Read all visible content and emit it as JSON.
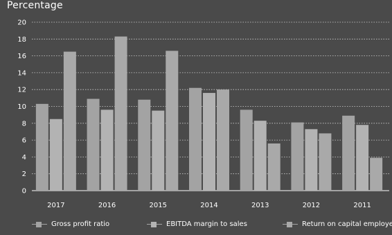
{
  "chart_data": {
    "type": "bar",
    "title": "",
    "ylabel": "Percentage",
    "xlabel": "",
    "ylim": [
      0,
      20
    ],
    "yticks": [
      0,
      2,
      4,
      6,
      8,
      10,
      12,
      14,
      16,
      18,
      20
    ],
    "grid": true,
    "legend_position": "bottom",
    "categories": [
      "2017",
      "2016",
      "2015",
      "2014",
      "2013",
      "2012",
      "2011"
    ],
    "series": [
      {
        "name": "Gross profit ratio",
        "values": [
          10.3,
          10.9,
          10.8,
          12.2,
          9.6,
          8.1,
          8.9
        ]
      },
      {
        "name": "EBITDA margin to sales",
        "values": [
          8.5,
          9.6,
          9.5,
          11.6,
          8.3,
          7.3,
          7.8
        ]
      },
      {
        "name": "Return on capital employed",
        "values": [
          16.5,
          18.3,
          16.6,
          12.0,
          5.6,
          6.8,
          3.9
        ]
      }
    ]
  },
  "colors": {
    "background": "#4a4a4a",
    "series": [
      "#a3a3a3",
      "#b3b3b3",
      "#a9a9a9"
    ],
    "grid": "#cfcfcf",
    "text": "#ffffff"
  }
}
